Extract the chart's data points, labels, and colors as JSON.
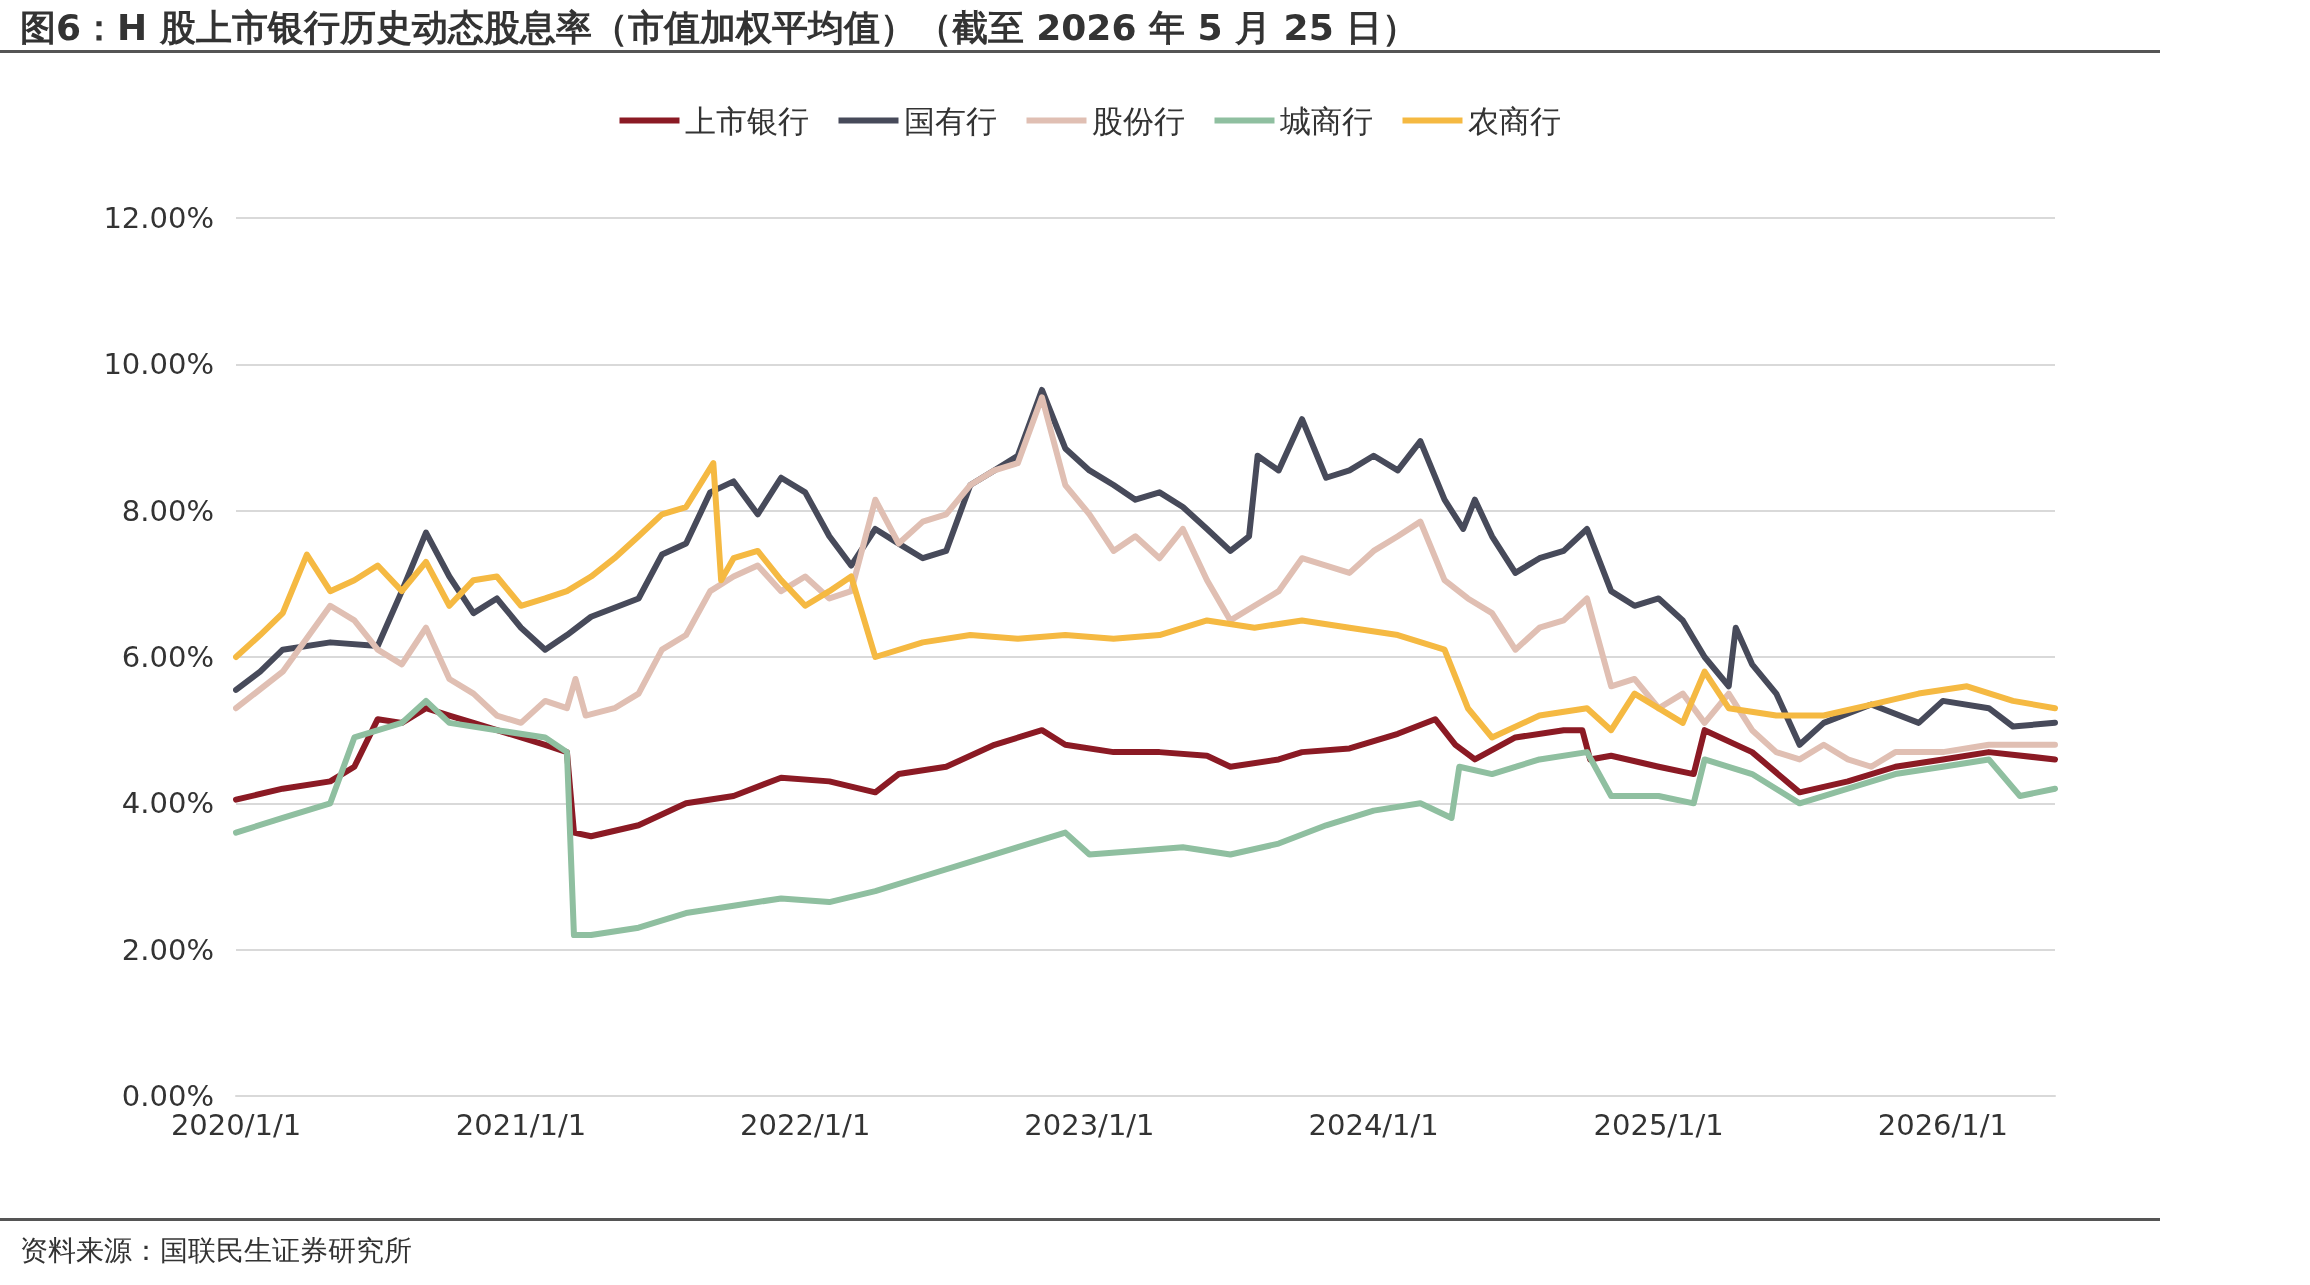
{
  "chart_data": {
    "type": "line",
    "title": "图6：H 股上市银行历史动态股息率（市值加权平均值）（截至 2026 年 5 月 25 日）",
    "annotations": [
      "资料来源：国联民生证券研究所"
    ],
    "legend": "top",
    "grid": "y",
    "marker": "none",
    "line_style": "solid",
    "xlim": [
      "2020-01-01",
      "2026-05-25"
    ],
    "xticks": [
      {
        "value": "2020-01-01",
        "label": "2020/1/1"
      },
      {
        "value": "2021-01-01",
        "label": "2021/1/1"
      },
      {
        "value": "2022-01-01",
        "label": "2022/1/1"
      },
      {
        "value": "2023-01-01",
        "label": "2023/1/1"
      },
      {
        "value": "2024-01-01",
        "label": "2024/1/1"
      },
      {
        "value": "2025-01-01",
        "label": "2025/1/1"
      },
      {
        "value": "2026-01-01",
        "label": "2026/1/1"
      }
    ],
    "ylim": [
      0,
      12
    ],
    "yticks": [
      {
        "value": 0,
        "label": "0.00%"
      },
      {
        "value": 2,
        "label": "2.00%"
      },
      {
        "value": 4,
        "label": "4.00%"
      },
      {
        "value": 6,
        "label": "6.00%"
      },
      {
        "value": 8,
        "label": "8.00%"
      },
      {
        "value": 10,
        "label": "10.00%"
      },
      {
        "value": 12,
        "label": "12.00%"
      }
    ],
    "series": [
      {
        "name": "上市银行",
        "color": "#8b1a24",
        "x": [
          "2020-01-01",
          "2020-03-01",
          "2020-05-01",
          "2020-06-01",
          "2020-07-01",
          "2020-08-01",
          "2020-09-01",
          "2020-10-01",
          "2020-11-01",
          "2021-01-01",
          "2021-02-01",
          "2021-03-01",
          "2021-03-10",
          "2021-04-01",
          "2021-06-01",
          "2021-08-01",
          "2021-10-01",
          "2021-12-01",
          "2022-02-01",
          "2022-04-01",
          "2022-05-01",
          "2022-07-01",
          "2022-09-01",
          "2022-11-01",
          "2022-12-01",
          "2023-02-01",
          "2023-04-01",
          "2023-06-01",
          "2023-07-01",
          "2023-09-01",
          "2023-10-01",
          "2023-12-01",
          "2024-02-01",
          "2024-03-20",
          "2024-04-15",
          "2024-05-10",
          "2024-07-01",
          "2024-09-01",
          "2024-09-25",
          "2024-10-05",
          "2024-11-01",
          "2025-01-01",
          "2025-02-15",
          "2025-03-01",
          "2025-05-01",
          "2025-07-01",
          "2025-09-01",
          "2025-11-01",
          "2026-01-01",
          "2026-03-01",
          "2026-05-25"
        ],
        "values": [
          4.05,
          4.2,
          4.3,
          4.5,
          5.15,
          5.1,
          5.3,
          5.2,
          5.1,
          4.9,
          4.8,
          4.7,
          3.6,
          3.55,
          3.7,
          4.0,
          4.1,
          4.35,
          4.3,
          4.15,
          4.4,
          4.5,
          4.8,
          5.0,
          4.8,
          4.7,
          4.7,
          4.65,
          4.5,
          4.6,
          4.7,
          4.75,
          4.95,
          5.15,
          4.8,
          4.6,
          4.9,
          5.0,
          5.0,
          4.6,
          4.65,
          4.5,
          4.4,
          5.0,
          4.7,
          4.15,
          4.3,
          4.5,
          4.6,
          4.7,
          4.6
        ]
      },
      {
        "name": "国有行",
        "color": "#474a5a",
        "x": [
          "2020-01-01",
          "2020-02-01",
          "2020-03-01",
          "2020-05-01",
          "2020-07-01",
          "2020-08-01",
          "2020-09-01",
          "2020-10-01",
          "2020-11-01",
          "2020-12-01",
          "2021-01-01",
          "2021-02-01",
          "2021-03-01",
          "2021-04-01",
          "2021-06-01",
          "2021-07-01",
          "2021-08-01",
          "2021-09-01",
          "2021-10-01",
          "2021-11-01",
          "2021-12-01",
          "2022-01-01",
          "2022-02-01",
          "2022-03-01",
          "2022-04-01",
          "2022-05-01",
          "2022-06-01",
          "2022-07-01",
          "2022-08-01",
          "2022-09-01",
          "2022-10-01",
          "2022-11-01",
          "2022-12-01",
          "2023-01-01",
          "2023-02-01",
          "2023-03-01",
          "2023-04-01",
          "2023-05-01",
          "2023-06-01",
          "2023-07-01",
          "2023-07-25",
          "2023-08-05",
          "2023-09-01",
          "2023-10-01",
          "2023-11-01",
          "2023-12-01",
          "2024-01-01",
          "2024-02-01",
          "2024-03-01",
          "2024-04-01",
          "2024-04-25",
          "2024-05-10",
          "2024-06-01",
          "2024-07-01",
          "2024-08-01",
          "2024-09-01",
          "2024-10-01",
          "2024-11-01",
          "2024-12-01",
          "2025-01-01",
          "2025-02-01",
          "2025-03-01",
          "2025-04-01",
          "2025-04-10",
          "2025-05-01",
          "2025-06-01",
          "2025-07-01",
          "2025-08-01",
          "2025-10-01",
          "2025-12-01",
          "2026-01-01",
          "2026-03-01",
          "2026-04-01",
          "2026-05-25"
        ],
        "values": [
          5.55,
          5.8,
          6.1,
          6.2,
          6.15,
          6.9,
          7.7,
          7.1,
          6.6,
          6.8,
          6.4,
          6.1,
          6.3,
          6.55,
          6.8,
          7.4,
          7.55,
          8.25,
          8.4,
          7.95,
          8.45,
          8.25,
          7.65,
          7.25,
          7.75,
          7.55,
          7.35,
          7.45,
          8.35,
          8.55,
          8.75,
          9.65,
          8.85,
          8.55,
          8.35,
          8.15,
          8.25,
          8.05,
          7.75,
          7.45,
          7.65,
          8.75,
          8.55,
          9.25,
          8.45,
          8.55,
          8.75,
          8.55,
          8.95,
          8.15,
          7.75,
          8.15,
          7.65,
          7.15,
          7.35,
          7.45,
          7.75,
          6.9,
          6.7,
          6.8,
          6.5,
          6.0,
          5.6,
          6.4,
          5.9,
          5.5,
          4.8,
          5.1,
          5.35,
          5.1,
          5.4,
          5.3,
          5.05,
          5.1
        ]
      },
      {
        "name": "股份行",
        "color": "#e0bfb3",
        "x": [
          "2020-01-01",
          "2020-03-01",
          "2020-05-01",
          "2020-06-01",
          "2020-07-01",
          "2020-08-01",
          "2020-09-01",
          "2020-10-01",
          "2020-11-01",
          "2020-12-01",
          "2021-01-01",
          "2021-02-01",
          "2021-03-01",
          "2021-03-12",
          "2021-03-25",
          "2021-05-01",
          "2021-06-01",
          "2021-07-01",
          "2021-08-01",
          "2021-09-01",
          "2021-10-01",
          "2021-11-01",
          "2021-12-01",
          "2022-01-01",
          "2022-02-01",
          "2022-03-01",
          "2022-04-01",
          "2022-05-01",
          "2022-06-01",
          "2022-07-01",
          "2022-08-01",
          "2022-09-01",
          "2022-10-01",
          "2022-11-01",
          "2022-12-01",
          "2023-01-01",
          "2023-02-01",
          "2023-03-01",
          "2023-04-01",
          "2023-05-01",
          "2023-06-01",
          "2023-07-01",
          "2023-08-01",
          "2023-09-01",
          "2023-10-01",
          "2023-11-01",
          "2023-12-01",
          "2024-01-01",
          "2024-02-01",
          "2024-03-01",
          "2024-04-01",
          "2024-05-01",
          "2024-06-01",
          "2024-07-01",
          "2024-08-01",
          "2024-09-01",
          "2024-10-01",
          "2024-11-01",
          "2024-12-01",
          "2025-01-01",
          "2025-02-01",
          "2025-03-01",
          "2025-04-01",
          "2025-05-01",
          "2025-06-01",
          "2025-07-01",
          "2025-08-01",
          "2025-09-01",
          "2025-10-01",
          "2025-11-01",
          "2026-01-01",
          "2026-03-01",
          "2026-05-25"
        ],
        "values": [
          5.3,
          5.8,
          6.7,
          6.5,
          6.1,
          5.9,
          6.4,
          5.7,
          5.5,
          5.2,
          5.1,
          5.4,
          5.3,
          5.7,
          5.2,
          5.3,
          5.5,
          6.1,
          6.3,
          6.9,
          7.1,
          7.25,
          6.9,
          7.1,
          6.8,
          6.9,
          8.15,
          7.55,
          7.85,
          7.95,
          8.35,
          8.55,
          8.65,
          9.55,
          8.35,
          7.95,
          7.45,
          7.65,
          7.35,
          7.75,
          7.05,
          6.5,
          6.7,
          6.9,
          7.35,
          7.25,
          7.15,
          7.45,
          7.65,
          7.85,
          7.05,
          6.8,
          6.6,
          6.1,
          6.4,
          6.5,
          6.8,
          5.6,
          5.7,
          5.3,
          5.5,
          5.1,
          5.5,
          5.0,
          4.7,
          4.6,
          4.8,
          4.6,
          4.5,
          4.7,
          4.7,
          4.8,
          4.8
        ]
      },
      {
        "name": "城商行",
        "color": "#8fbfa0",
        "x": [
          "2020-01-01",
          "2020-03-01",
          "2020-05-01",
          "2020-06-01",
          "2020-08-01",
          "2020-09-01",
          "2020-10-01",
          "2020-12-01",
          "2021-02-01",
          "2021-03-01",
          "2021-03-10",
          "2021-04-01",
          "2021-06-01",
          "2021-08-01",
          "2021-10-01",
          "2021-12-01",
          "2022-02-01",
          "2022-04-01",
          "2022-06-01",
          "2022-08-01",
          "2022-10-01",
          "2022-12-01",
          "2023-01-01",
          "2023-03-01",
          "2023-05-01",
          "2023-07-01",
          "2023-09-01",
          "2023-11-01",
          "2024-01-01",
          "2024-03-01",
          "2024-04-10",
          "2024-04-20",
          "2024-06-01",
          "2024-08-01",
          "2024-10-01",
          "2024-11-01",
          "2025-01-01",
          "2025-02-15",
          "2025-03-01",
          "2025-05-01",
          "2025-07-01",
          "2025-09-01",
          "2025-11-01",
          "2026-01-01",
          "2026-03-01",
          "2026-04-10",
          "2026-05-25"
        ],
        "values": [
          3.6,
          3.8,
          4.0,
          4.9,
          5.1,
          5.4,
          5.1,
          5.0,
          4.9,
          4.7,
          2.2,
          2.2,
          2.3,
          2.5,
          2.6,
          2.7,
          2.65,
          2.8,
          3.0,
          3.2,
          3.4,
          3.6,
          3.3,
          3.35,
          3.4,
          3.3,
          3.45,
          3.7,
          3.9,
          4.0,
          3.8,
          4.5,
          4.4,
          4.6,
          4.7,
          4.1,
          4.1,
          4.0,
          4.6,
          4.4,
          4.0,
          4.2,
          4.4,
          4.5,
          4.6,
          4.1,
          4.2
        ]
      },
      {
        "name": "农商行",
        "color": "#f5b942",
        "x": [
          "2020-01-01",
          "2020-02-01",
          "2020-03-01",
          "2020-04-01",
          "2020-05-01",
          "2020-06-01",
          "2020-07-01",
          "2020-08-01",
          "2020-09-01",
          "2020-10-01",
          "2020-11-01",
          "2020-12-01",
          "2021-01-01",
          "2021-02-01",
          "2021-03-01",
          "2021-04-01",
          "2021-05-01",
          "2021-06-01",
          "2021-07-01",
          "2021-08-01",
          "2021-09-05",
          "2021-09-15",
          "2021-10-01",
          "2021-11-01",
          "2021-12-01",
          "2022-01-01",
          "2022-02-01",
          "2022-03-01",
          "2022-04-01",
          "2022-06-01",
          "2022-08-01",
          "2022-10-01",
          "2022-12-01",
          "2023-02-01",
          "2023-04-01",
          "2023-06-01",
          "2023-08-01",
          "2023-10-01",
          "2023-12-01",
          "2024-02-01",
          "2024-04-01",
          "2024-05-01",
          "2024-06-01",
          "2024-08-01",
          "2024-10-01",
          "2024-11-01",
          "2024-12-01",
          "2025-02-01",
          "2025-03-01",
          "2025-04-01",
          "2025-06-01",
          "2025-08-01",
          "2025-10-01",
          "2025-12-01",
          "2026-02-01",
          "2026-04-01",
          "2026-05-25"
        ],
        "values": [
          6.0,
          6.3,
          6.6,
          7.4,
          6.9,
          7.05,
          7.25,
          6.9,
          7.3,
          6.7,
          7.05,
          7.1,
          6.7,
          6.8,
          6.9,
          7.1,
          7.35,
          7.65,
          7.95,
          8.05,
          8.65,
          7.05,
          7.35,
          7.45,
          7.05,
          6.7,
          6.9,
          7.1,
          6.0,
          6.2,
          6.3,
          6.25,
          6.3,
          6.25,
          6.3,
          6.5,
          6.4,
          6.5,
          6.4,
          6.3,
          6.1,
          5.3,
          4.9,
          5.2,
          5.3,
          5.0,
          5.5,
          5.1,
          5.8,
          5.3,
          5.2,
          5.2,
          5.35,
          5.5,
          5.6,
          5.4,
          5.3
        ]
      }
    ]
  }
}
